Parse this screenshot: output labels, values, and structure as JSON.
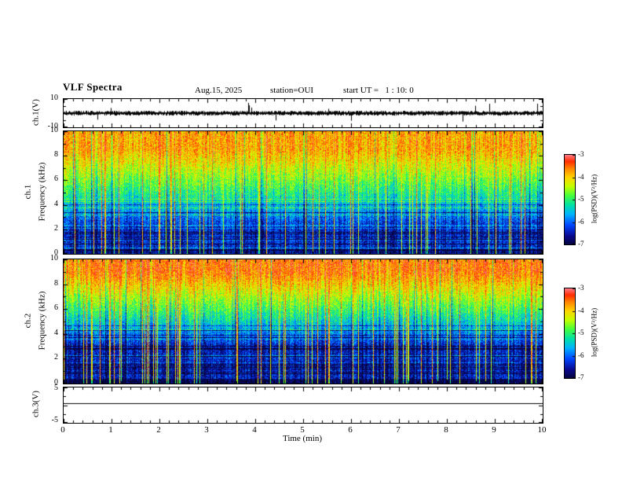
{
  "header": {
    "title": "VLF Spectra",
    "date": "Aug.15, 2025",
    "station": "station=OUI",
    "start_ut": "start UT =   1 : 10: 0"
  },
  "panels": {
    "ch1_wave": {
      "label": "ch.1(V)",
      "yticks": [
        "10",
        "-10"
      ]
    },
    "ch1_spec": {
      "channel": "ch.1",
      "ylabel": "Frequency (kHz)",
      "yticks": [
        "10",
        "8",
        "6",
        "4",
        "2",
        "0"
      ]
    },
    "ch2_spec": {
      "channel": "ch.2",
      "ylabel": "Frequency (kHz)",
      "yticks": [
        "10",
        "8",
        "6",
        "4",
        "2",
        "0"
      ]
    },
    "ch3": {
      "label": "ch.3(V)",
      "yticks": [
        "5",
        "-5"
      ]
    }
  },
  "xaxis": {
    "label": "Time (min)",
    "ticks": [
      "0",
      "1",
      "2",
      "3",
      "4",
      "5",
      "6",
      "7",
      "8",
      "9",
      "10"
    ],
    "min": 0,
    "max": 10
  },
  "colorbar": {
    "label": "log(PSD)(V²/Hz)",
    "ticks": [
      "-3",
      "-4",
      "-5",
      "-6",
      "-7"
    ],
    "max": -3,
    "min": -7
  },
  "colors": {
    "background": "#ffffff",
    "trace": "#000000",
    "colormap_top": "#ff7882",
    "colormap_high": "#ff2d00",
    "colormap_mid": "#46ff3c",
    "colormap_low": "#0046ff",
    "colormap_bottom": "#05053c"
  },
  "chart_data": [
    {
      "type": "line",
      "title": "ch.1 waveform",
      "xlabel": "Time (min)",
      "ylabel": "ch.1(V)",
      "xlim": [
        0,
        10
      ],
      "ylim": [
        -10,
        10
      ],
      "description": "Dense noisy voltage trace centered near 0 V with intermittent impulsive spikes reaching toward ±10 V throughout the 10 minutes."
    },
    {
      "type": "heatmap",
      "title": "ch.1 spectrogram",
      "xlabel": "Time (min)",
      "ylabel": "Frequency (kHz)",
      "xlim": [
        0,
        10
      ],
      "ylim": [
        0,
        10
      ],
      "zlabel": "log(PSD)(V²/Hz)",
      "zlim": [
        -7,
        -3
      ],
      "description": "Broadband VLF spectrogram: high power (red/orange/yellow, ~-3.5 to -4.5) above ~6 kHz, green (~-5) from ~4.5-6 kHz, low power (blue to dark, -6 to -7) below ~4 kHz with horizontal interference lines; frequent vertical impulsive streaks (sferics) span all frequencies."
    },
    {
      "type": "heatmap",
      "title": "ch.2 spectrogram",
      "xlabel": "Time (min)",
      "ylabel": "Frequency (kHz)",
      "xlim": [
        0,
        10
      ],
      "ylim": [
        0,
        10
      ],
      "zlabel": "log(PSD)(V²/Hz)",
      "zlim": [
        -7,
        -3
      ],
      "description": "Similar to ch.1 but with a stronger red band above ~6.5 kHz and the blue low-power region extending up to ~5 kHz; vertical impulsive streaks throughout."
    },
    {
      "type": "line",
      "title": "ch.3 trace",
      "xlabel": "Time (min)",
      "ylabel": "ch.3(V)",
      "xlim": [
        0,
        10
      ],
      "ylim": [
        -5,
        5
      ],
      "constant_value": 0,
      "description": "Flat horizontal line near 0 V for the full interval."
    }
  ]
}
